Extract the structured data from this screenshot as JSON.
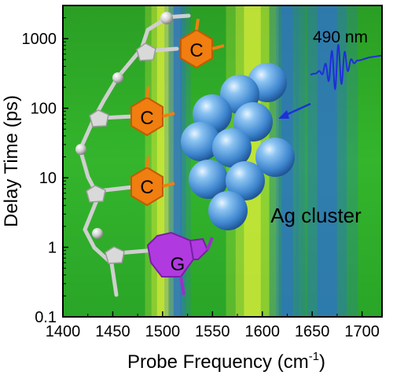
{
  "figure": {
    "xlabel": "Probe Frequency (cm",
    "xlabel_sup": "-1",
    "xlabel_close": ")",
    "ylabel": "Delay Time (ps)",
    "annotation_wavelength": "490 nm",
    "annotation_cluster": "Ag cluster",
    "base_labels": [
      "C",
      "C",
      "C",
      "G"
    ]
  },
  "colors": {
    "heatmap_bg": "#2eae28",
    "band_yellow": "#e6f23a",
    "band_blue": "#2f6fd2",
    "cytosine": "#f07e10",
    "guanine": "#b03adf",
    "silver_cluster": "#5b9fe0",
    "laser_pulse": "#1f2fd8",
    "backbone": "#cfcfcf"
  },
  "chart_data": {
    "type": "heatmap",
    "xlabel": "Probe Frequency (cm-1)",
    "ylabel": "Delay Time (ps)",
    "xlim": [
      1400,
      1720
    ],
    "ylim": [
      0.1,
      3000
    ],
    "y_scale": "log",
    "x_ticks": [
      1400,
      1450,
      1500,
      1550,
      1600,
      1650,
      1700
    ],
    "x_tick_labels": [
      "1400",
      "1450",
      "1500",
      "1550",
      "1600",
      "1650",
      "1700"
    ],
    "y_ticks": [
      0.1,
      1,
      10,
      100,
      1000
    ],
    "y_tick_labels": [
      "0.1",
      "1",
      "10",
      "100",
      "1000"
    ],
    "bands": [
      {
        "kind": "positive",
        "center": 1500,
        "width": 8
      },
      {
        "kind": "negative",
        "center": 1515,
        "width": 6
      },
      {
        "kind": "positive",
        "center": 1590,
        "width": 12
      },
      {
        "kind": "negative",
        "center": 1625,
        "width": 8
      },
      {
        "kind": "negative",
        "center": 1665,
        "width": 14
      }
    ]
  }
}
